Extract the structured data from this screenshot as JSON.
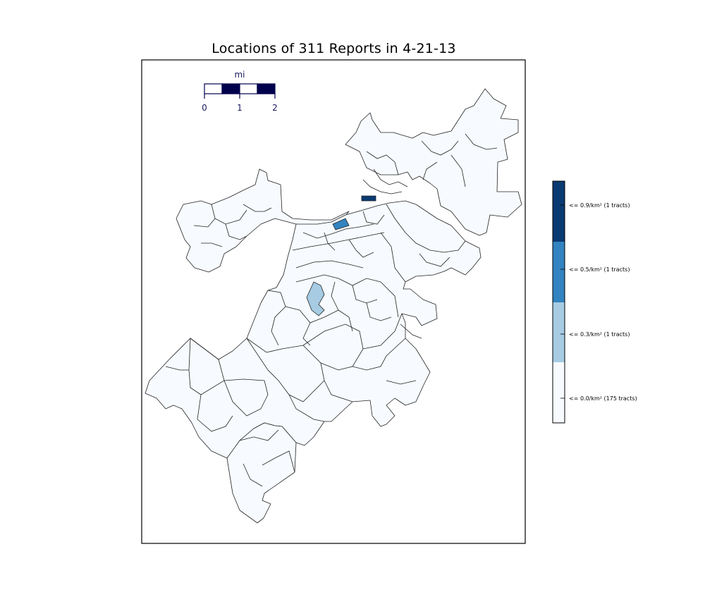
{
  "title": "Locations of 311 Reports in 4-21-13",
  "scalebar": {
    "unit": "mi",
    "ticks": [
      "0",
      "1",
      "2"
    ],
    "color": "#00004d"
  },
  "legend": {
    "entries": [
      {
        "label": "<= 0.9/km² (1 tracts)",
        "color": "#0a3a72"
      },
      {
        "label": "<= 0.5/km² (1 tracts)",
        "color": "#3383c0"
      },
      {
        "label": "<= 0.3/km² (1 tracts)",
        "color": "#a6cbe3"
      },
      {
        "label": "<= 0.0/km² (175 tracts)",
        "color": "#f7fbff"
      }
    ]
  },
  "map": {
    "region": "Boston census tracts",
    "base_fill": "#f7fbff",
    "highlighted_tracts": [
      {
        "class": "<= 0.9/km²",
        "color": "#0a3a72"
      },
      {
        "class": "<= 0.5/km²",
        "color": "#3383c0"
      },
      {
        "class": "<= 0.3/km²",
        "color": "#a6cbe3"
      }
    ]
  }
}
